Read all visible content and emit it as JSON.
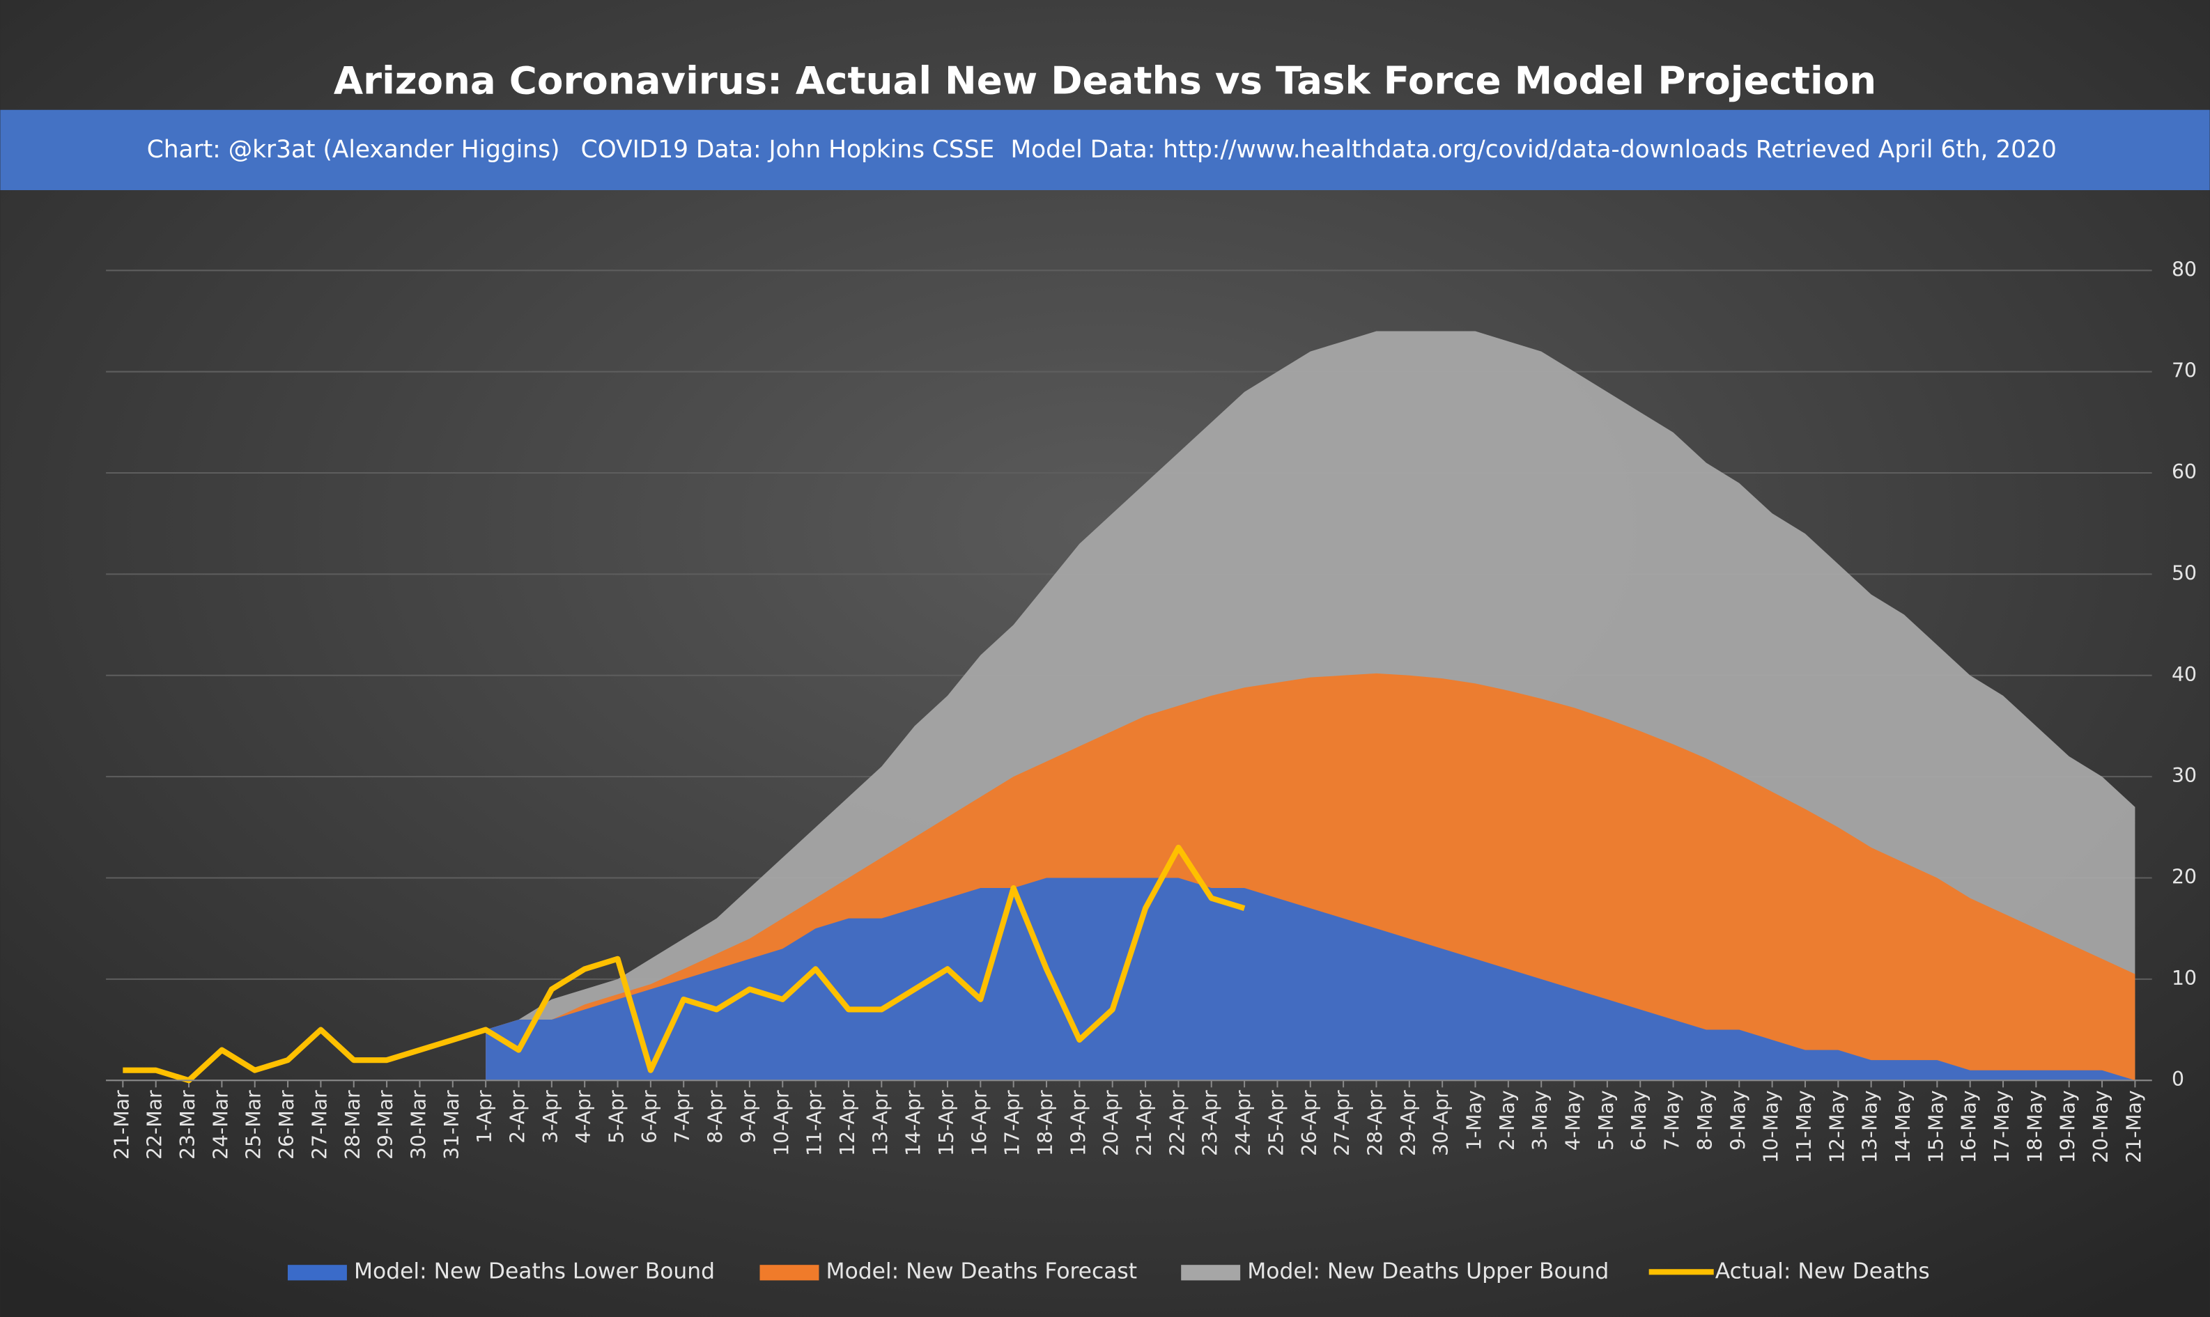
{
  "chart_data": {
    "type": "area-line",
    "title": "Arizona Coronavirus: Actual New Deaths vs Task Force Model Projection",
    "subtitle": [
      "Chart: @kr3at (Alexander Higgins)",
      "COVID19 Data: John Hopkins CSSE",
      "Model Data: http://www.healthdata.org/covid/data-downloads Retrieved April 6th, 2020"
    ],
    "categories": [
      "21-Mar",
      "22-Mar",
      "23-Mar",
      "24-Mar",
      "25-Mar",
      "26-Mar",
      "27-Mar",
      "28-Mar",
      "29-Mar",
      "30-Mar",
      "31-Mar",
      "1-Apr",
      "2-Apr",
      "3-Apr",
      "4-Apr",
      "5-Apr",
      "6-Apr",
      "7-Apr",
      "8-Apr",
      "9-Apr",
      "10-Apr",
      "11-Apr",
      "12-Apr",
      "13-Apr",
      "14-Apr",
      "15-Apr",
      "16-Apr",
      "17-Apr",
      "18-Apr",
      "19-Apr",
      "20-Apr",
      "21-Apr",
      "22-Apr",
      "23-Apr",
      "24-Apr",
      "25-Apr",
      "26-Apr",
      "27-Apr",
      "28-Apr",
      "29-Apr",
      "30-Apr",
      "1-May",
      "2-May",
      "3-May",
      "4-May",
      "5-May",
      "6-May",
      "7-May",
      "8-May",
      "9-May",
      "10-May",
      "11-May",
      "12-May",
      "13-May",
      "14-May",
      "15-May",
      "16-May",
      "17-May",
      "18-May",
      "19-May",
      "20-May",
      "21-May"
    ],
    "series": [
      {
        "name": "Model: New Deaths Upper Bound",
        "color": "#a6a6a6",
        "kind": "area",
        "values": [
          null,
          null,
          null,
          null,
          null,
          null,
          null,
          null,
          null,
          null,
          null,
          5,
          6,
          8,
          9,
          10,
          12,
          14,
          16,
          19,
          22,
          25,
          28,
          31,
          35,
          38,
          42,
          45,
          49,
          53,
          56,
          59,
          62,
          65,
          68,
          70,
          72,
          73,
          74,
          74,
          74,
          74,
          73,
          72,
          70,
          68,
          66,
          64,
          61,
          59,
          56,
          54,
          51,
          48,
          46,
          43,
          40,
          38,
          35,
          32,
          30,
          27
        ]
      },
      {
        "name": "Model: New Deaths Forecast",
        "color": "#f07b2a",
        "kind": "area",
        "values": [
          null,
          null,
          null,
          null,
          null,
          null,
          null,
          null,
          null,
          null,
          null,
          5,
          6,
          6,
          7.5,
          8.5,
          9.5,
          11,
          12.5,
          14,
          16,
          18,
          20,
          22,
          24,
          26,
          28,
          30,
          31.5,
          33,
          34.5,
          36,
          37,
          38,
          38.8,
          39.3,
          39.8,
          40,
          40.2,
          40,
          39.7,
          39.2,
          38.5,
          37.7,
          36.8,
          35.7,
          34.5,
          33.2,
          31.8,
          30.2,
          28.5,
          26.8,
          25,
          23,
          21.5,
          20,
          18,
          16.5,
          15,
          13.5,
          12,
          10.5
        ]
      },
      {
        "name": "Model: New Deaths Lower Bound",
        "color": "#3a6bc9",
        "kind": "area",
        "values": [
          null,
          null,
          null,
          null,
          null,
          null,
          null,
          null,
          null,
          null,
          null,
          5,
          6,
          6,
          7,
          8,
          9,
          10,
          11,
          12,
          13,
          15,
          16,
          16,
          17,
          18,
          19,
          19,
          20,
          20,
          20,
          20,
          20,
          19,
          19,
          18,
          17,
          16,
          15,
          14,
          13,
          12,
          11,
          10,
          9,
          8,
          7,
          6,
          5,
          5,
          4,
          3,
          3,
          2,
          2,
          2,
          1,
          1,
          1,
          1,
          1,
          0
        ]
      },
      {
        "name": "Actual: New Deaths",
        "color": "#ffc000",
        "kind": "line",
        "values": [
          1,
          1,
          0,
          3,
          1,
          2,
          5,
          2,
          2,
          3,
          4,
          5,
          3,
          9,
          11,
          12,
          1,
          8,
          7,
          9,
          8,
          11,
          7,
          7,
          9,
          11,
          8,
          19,
          11,
          4,
          7,
          17,
          23,
          18,
          17,
          null,
          null,
          null,
          null,
          null,
          null,
          null,
          null,
          null,
          null,
          null,
          null,
          null,
          null,
          null,
          null,
          null,
          null,
          null,
          null,
          null,
          null,
          null,
          null,
          null,
          null,
          null
        ]
      }
    ],
    "legend_order": [
      2,
      1,
      0,
      3
    ],
    "ylim": [
      0,
      80
    ],
    "yticks": [
      0,
      10,
      20,
      30,
      40,
      50,
      60,
      70,
      80
    ],
    "grid": true
  }
}
